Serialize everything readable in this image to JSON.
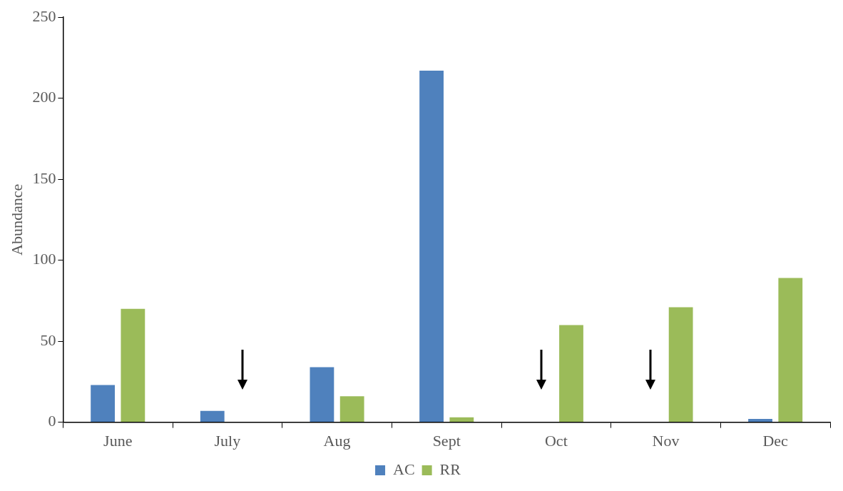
{
  "chart_data": {
    "type": "bar",
    "ylabel": "Abundance",
    "categories": [
      "June",
      "July",
      "Aug",
      "Sept",
      "Oct",
      "Nov",
      "Dec"
    ],
    "series": [
      {
        "name": "AC",
        "color": "#4f81bd",
        "values": [
          23,
          7,
          34,
          217,
          0,
          0,
          2
        ]
      },
      {
        "name": "RR",
        "color": "#9bbb59",
        "values": [
          70,
          0,
          16,
          3,
          60,
          71,
          89
        ]
      }
    ],
    "ylim": [
      0,
      250
    ],
    "yticks": [
      0,
      50,
      100,
      150,
      200,
      250
    ],
    "grid": false,
    "legend": "bottom"
  }
}
